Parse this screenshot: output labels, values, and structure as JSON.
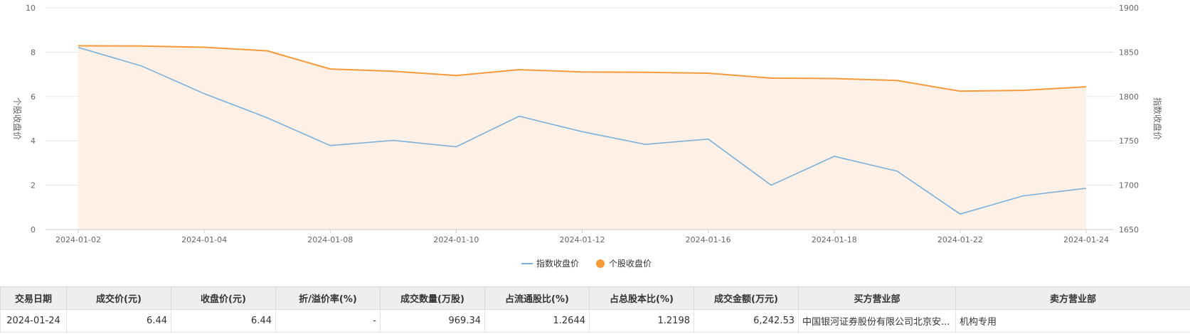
{
  "chart_data": {
    "type": "line",
    "x": [
      "2024-01-02",
      "2024-01-03",
      "2024-01-04",
      "2024-01-05",
      "2024-01-08",
      "2024-01-09",
      "2024-01-10",
      "2024-01-11",
      "2024-01-12",
      "2024-01-15",
      "2024-01-16",
      "2024-01-17",
      "2024-01-18",
      "2024-01-19",
      "2024-01-22",
      "2024-01-23",
      "2024-01-24"
    ],
    "x_tick_labels": [
      "2024-01-02",
      "2024-01-04",
      "2024-01-08",
      "2024-01-10",
      "2024-01-12",
      "2024-01-16",
      "2024-01-18",
      "2024-01-22",
      "2024-01-24"
    ],
    "ylabel_left": "个股收盘价",
    "ylabel_right": "指数收盘价",
    "ylim_left": [
      0,
      10
    ],
    "ylim_right": [
      1650,
      1900
    ],
    "yticks_left": [
      "0",
      "2",
      "4",
      "6",
      "8",
      "10"
    ],
    "yticks_right": [
      "1650",
      "1700",
      "1750",
      "1800",
      "1850",
      "1900"
    ],
    "grid": true,
    "legend_position": "bottom",
    "series": [
      {
        "name": "指数收盘价",
        "axis": "right",
        "style": "line",
        "color": "#7cb0d9",
        "values": [
          1855.3,
          1834.5,
          1803.2,
          1776.0,
          1744.7,
          1750.5,
          1743.3,
          1777.8,
          1760.3,
          1746.0,
          1752.0,
          1700.0,
          1732.5,
          1715.8,
          1667.5,
          1688.0,
          1696.5
        ]
      },
      {
        "name": "个股收盘价",
        "axis": "left",
        "style": "area",
        "color": "#f59a3b",
        "fill": "#fdf0e6",
        "values": [
          8.29,
          8.28,
          8.22,
          8.06,
          7.24,
          7.14,
          6.95,
          7.21,
          7.11,
          7.09,
          7.05,
          6.83,
          6.81,
          6.72,
          6.24,
          6.28,
          6.44
        ]
      }
    ]
  },
  "table": {
    "headers": [
      "交易日期",
      "成交价(元)",
      "收盘价(元)",
      "折/溢价率(%)",
      "成交数量(万股)",
      "占流通股比(%)",
      "占总股本比(%)",
      "成交金额(万元)",
      "买方营业部",
      "卖方营业部"
    ],
    "rows": [
      [
        "2024-01-24",
        "6.44",
        "6.44",
        "-",
        "969.34",
        "1.2644",
        "1.2198",
        "6,242.53",
        "中国银河证券股份有限公司北京安...",
        "机构专用"
      ]
    ]
  }
}
